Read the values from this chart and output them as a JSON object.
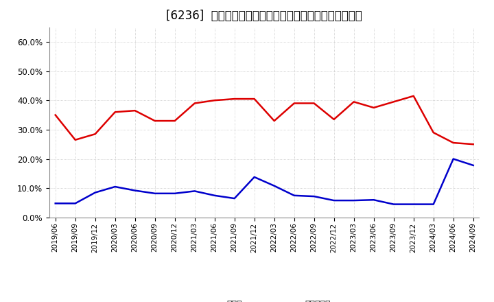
{
  "title": "[6236]  現預金、有利子負債の総資産に対する比率の推移",
  "x_labels": [
    "2019/06",
    "2019/09",
    "2019/12",
    "2020/03",
    "2020/06",
    "2020/09",
    "2020/12",
    "2021/03",
    "2021/06",
    "2021/09",
    "2021/12",
    "2022/03",
    "2022/06",
    "2022/09",
    "2022/12",
    "2023/03",
    "2023/06",
    "2023/09",
    "2023/12",
    "2024/03",
    "2024/06",
    "2024/09"
  ],
  "cash": [
    0.35,
    0.265,
    0.285,
    0.36,
    0.365,
    0.33,
    0.33,
    0.39,
    0.4,
    0.405,
    0.405,
    0.33,
    0.39,
    0.39,
    0.335,
    0.395,
    0.375,
    0.395,
    0.415,
    0.29,
    0.255,
    0.25
  ],
  "debt": [
    0.048,
    0.048,
    0.085,
    0.105,
    0.092,
    0.082,
    0.082,
    0.09,
    0.075,
    0.065,
    0.138,
    0.108,
    0.075,
    0.072,
    0.058,
    0.058,
    0.06,
    0.045,
    0.045,
    0.045,
    0.2,
    0.178
  ],
  "cash_color": "#dd0000",
  "debt_color": "#0000cc",
  "bg_color": "#ffffff",
  "plot_bg_color": "#ffffff",
  "grid_color": "#aaaaaa",
  "ylim": [
    0.0,
    0.65
  ],
  "yticks": [
    0.0,
    0.1,
    0.2,
    0.3,
    0.4,
    0.5,
    0.6
  ],
  "legend_cash": "現預金",
  "legend_debt": "有利子負債",
  "title_fontsize": 12
}
